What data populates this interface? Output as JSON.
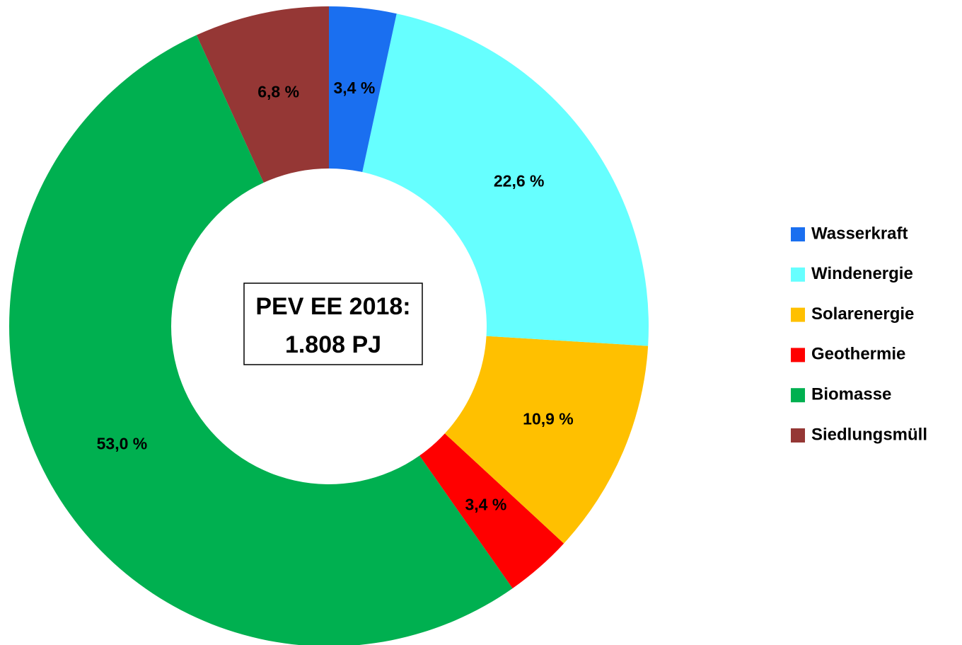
{
  "chart_data": {
    "type": "donut",
    "categories": [
      "Wasserkraft",
      "Windenergie",
      "Solarenergie",
      "Geothermie",
      "Biomasse",
      "Siedlungsmüll"
    ],
    "values": [
      3.4,
      22.6,
      10.9,
      3.4,
      53.0,
      6.8
    ],
    "value_labels": [
      "3,4 %",
      "22,6 %",
      "10,9 %",
      "3,4 %",
      "53,0 %",
      "6,8 %"
    ],
    "colors": [
      "#1a6ff0",
      "#66ffff",
      "#ffc000",
      "#ff0000",
      "#00b050",
      "#953735"
    ],
    "center_label": [
      "PEV EE 2018:",
      "1.808 PJ"
    ],
    "legend": "right"
  }
}
